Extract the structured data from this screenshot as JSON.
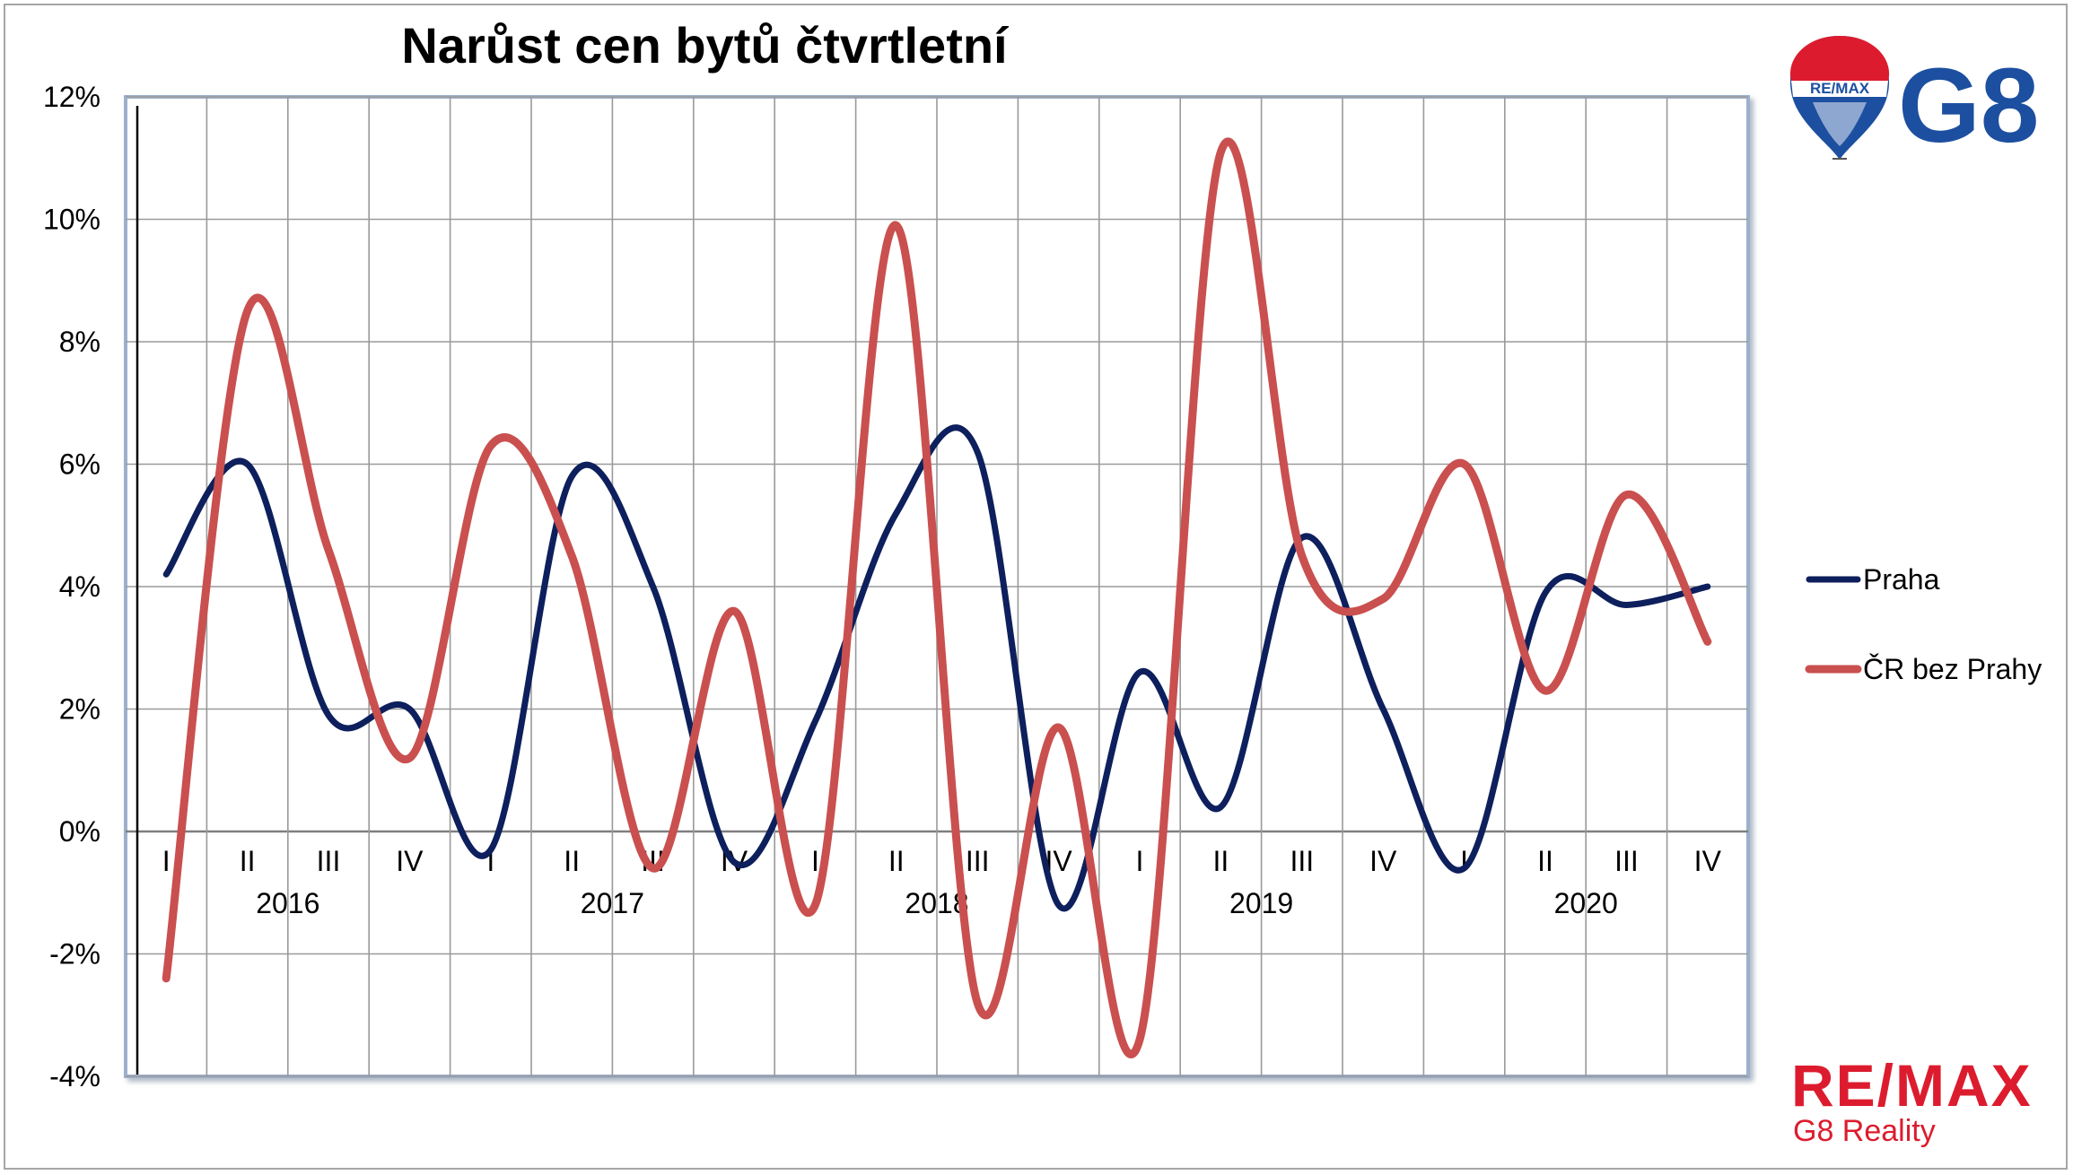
{
  "chart_data": {
    "type": "line",
    "title": "Narůst cen bytů čtvrtletní",
    "ylim": [
      -4,
      12
    ],
    "y_ticks": [
      "12%",
      "10%",
      "8%",
      "6%",
      "4%",
      "2%",
      "0%",
      "-2%",
      "-4%"
    ],
    "y_tick_values": [
      12,
      10,
      8,
      6,
      4,
      2,
      0,
      -2,
      -4
    ],
    "quarters": [
      "I",
      "II",
      "III",
      "IV",
      "I",
      "II",
      "III",
      "IV",
      "I",
      "II",
      "III",
      "IV",
      "I",
      "II",
      "III",
      "IV",
      "I",
      "II",
      "III",
      "IV"
    ],
    "years": [
      "2016",
      "2017",
      "2018",
      "2019",
      "2020"
    ],
    "grid": true,
    "legend_position": "right",
    "series": [
      {
        "name": "Praha",
        "color": "#0d1f5c",
        "values": [
          4.2,
          6.0,
          1.9,
          2.0,
          -0.3,
          5.8,
          4.0,
          -0.5,
          1.8,
          5.2,
          6.2,
          -1.2,
          2.6,
          0.4,
          4.8,
          2.0,
          -0.6,
          3.9,
          3.7,
          4.0
        ]
      },
      {
        "name": "ČR bez Prahy",
        "color": "#c9504f",
        "values": [
          -2.4,
          8.5,
          4.6,
          1.2,
          6.3,
          4.5,
          -0.6,
          3.6,
          -1.2,
          9.9,
          -2.8,
          1.7,
          -3.4,
          11.1,
          4.5,
          3.8,
          6.0,
          2.3,
          5.5,
          3.1
        ]
      }
    ]
  },
  "logo": {
    "top_text": "G8",
    "balloon_text": "RE/MAX",
    "bottom_word": "RE/MAX",
    "bottom_sub": "G8 Reality"
  }
}
